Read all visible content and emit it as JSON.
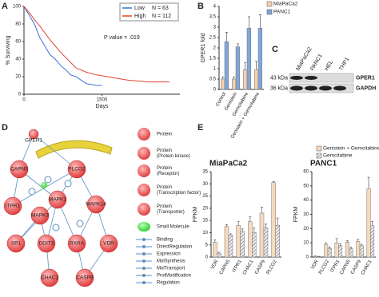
{
  "chart_data": [
    {
      "type": "line",
      "panel_label": "A",
      "y_label": "% Surviving",
      "x_label": "Days",
      "annotation": "P value = .019",
      "x": [
        0,
        100,
        200,
        300,
        400,
        500,
        600,
        700,
        800,
        900,
        1000,
        1200,
        1400,
        1500,
        1600,
        2000,
        2400,
        2800
      ],
      "series": [
        {
          "name": "Low",
          "n_label": "N = 63",
          "color": "#3a6fd8",
          "values": [
            100,
            90,
            80,
            65,
            55,
            45,
            40,
            33,
            28,
            22,
            20,
            12,
            10,
            10,
            null,
            null,
            null,
            null
          ]
        },
        {
          "name": "High",
          "n_label": "N = 112",
          "color": "#e0452b",
          "values": [
            100,
            93,
            85,
            78,
            70,
            62,
            55,
            48,
            42,
            36,
            30,
            25,
            22,
            21,
            20,
            16,
            14,
            14
          ]
        }
      ],
      "xlim": [
        0,
        3000
      ],
      "xticks": [
        0,
        1500
      ],
      "ylim": [
        0,
        100
      ],
      "yticks": [
        0,
        20,
        40,
        60,
        80,
        100
      ]
    },
    {
      "type": "bar",
      "panel_label": "B",
      "y_label": "GPER1 fold",
      "categories": [
        "Control",
        "Genistein",
        "Gemcitabine",
        "Genistein + Gemcitabine"
      ],
      "series": [
        {
          "name": "MiaPaCa2",
          "color": "#f7cfb0",
          "values": [
            0.5,
            0.5,
            0.95,
            0.95
          ],
          "errors": [
            0.1,
            0.1,
            0.35,
            0.4
          ]
        },
        {
          "name": "PANC1",
          "color": "#7fa6d9",
          "values": [
            2.3,
            2.05,
            2.95,
            2.95
          ],
          "errors": [
            0.45,
            0.15,
            0.55,
            0.65
          ]
        }
      ],
      "ylim": [
        0,
        4
      ],
      "yticks": [
        0,
        0.5,
        1,
        1.5,
        2,
        2.5,
        3,
        3.5,
        4
      ]
    },
    {
      "type": "bar",
      "panel_label": "E",
      "title": "MiaPaCa2",
      "y_label": "FPKM",
      "categories": [
        "VDR",
        "CAPN5",
        "ITPR1",
        "CHAC1",
        "CASP9",
        "PLCG2"
      ],
      "series": [
        {
          "name": "Genistein + Gemcitabine",
          "color": "#f7d9bd",
          "values": [
            6,
            12.5,
            13,
            14.5,
            18,
            30.5
          ],
          "errors": [
            1,
            0.8,
            1.5,
            2,
            2.5,
            0.5
          ]
        },
        {
          "name": "Gemcitabine",
          "color": "#cfc6b8",
          "pattern": "hatch",
          "values": [
            1.5,
            9,
            10.5,
            10,
            12,
            13
          ],
          "errors": [
            0.5,
            0.5,
            1,
            2,
            1.5,
            3
          ]
        }
      ],
      "ylim": [
        0,
        35
      ],
      "yticks": [
        0,
        5,
        10,
        15,
        20,
        25,
        30,
        35
      ]
    },
    {
      "type": "bar",
      "title": "PANC1",
      "y_label": "FPKM",
      "categories": [
        "VDR",
        "PLCG2",
        "ITPR1",
        "CAPN5",
        "CASP9",
        "CHAC1"
      ],
      "series": [
        {
          "color": "#f7d9bd",
          "values": [
            0.5,
            9,
            10,
            10.5,
            11,
            48
          ],
          "errors": [
            0.3,
            1,
            3,
            1,
            1.5,
            8
          ]
        },
        {
          "color": "#cfc6b8",
          "pattern": "hatch",
          "values": [
            0.3,
            6,
            8,
            6,
            8,
            22
          ],
          "errors": [
            0.2,
            1,
            1.5,
            1,
            1,
            3
          ]
        }
      ],
      "ylim": [
        0,
        60
      ],
      "yticks": [
        0,
        10,
        20,
        30,
        40,
        50,
        60
      ]
    }
  ],
  "blot": {
    "panel_label": "C",
    "lanes": [
      "MiaPaCa2",
      "PANC1",
      "HEL",
      "THP1"
    ],
    "rows": [
      {
        "size": "43 kDa",
        "protein": "GPER1"
      },
      {
        "size": "36 kDa",
        "protein": "GAPDH"
      }
    ]
  },
  "diagram": {
    "panel_label": "D",
    "nodes": [
      "GPER1",
      "CAPN5",
      "PLCG2",
      "ITPR1",
      "MAPK1",
      "MAPK14",
      "MAPK3",
      "SP1",
      "DDIT3",
      "RXRA",
      "VDR",
      "CHAC1",
      "CASP9"
    ],
    "legend": [
      [
        "Protein"
      ],
      [
        "Protein",
        "(Protein kinase)"
      ],
      [
        "Protein",
        "(Receptor)"
      ],
      [
        "Protein",
        "(Transcription factor)"
      ],
      [
        "Protein",
        "(Transporter)"
      ],
      [
        "Small Molecule"
      ],
      [
        "Binding"
      ],
      [
        "DirectRegulation"
      ],
      [
        "Expression"
      ],
      [
        "MolSynthesis"
      ],
      [
        "MolTransport"
      ],
      [
        "ProtModification"
      ],
      [
        "Regulation"
      ]
    ]
  }
}
